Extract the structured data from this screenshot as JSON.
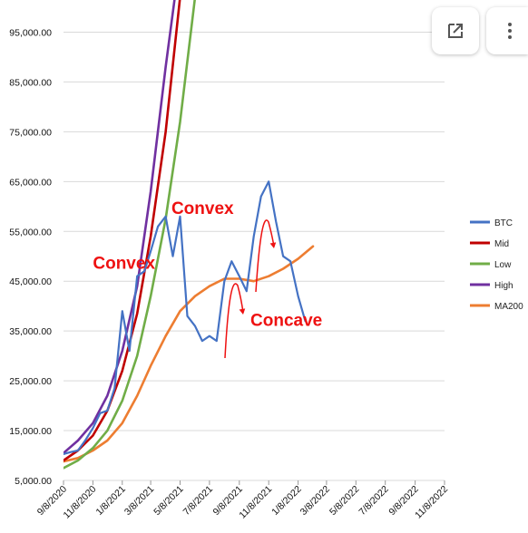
{
  "toolbar": {
    "open_icon": "open-in-new-icon",
    "more_icon": "more-vert-icon"
  },
  "chart_data": {
    "type": "line",
    "title": "",
    "xlabel": "",
    "ylabel": "",
    "ylim": [
      5000,
      100000
    ],
    "y_ticks": [
      "5,000.00",
      "15,000.00",
      "25,000.00",
      "35,000.00",
      "45,000.00",
      "55,000.00",
      "65,000.00",
      "75,000.00",
      "85,000.00",
      "95,000.00"
    ],
    "y_tick_values": [
      5000,
      15000,
      25000,
      35000,
      45000,
      55000,
      65000,
      75000,
      85000,
      95000
    ],
    "x_ticks": [
      "9/8/2020",
      "11/8/2020",
      "1/8/2021",
      "3/8/2021",
      "5/8/2021",
      "7/8/2021",
      "9/8/2021",
      "11/8/2021",
      "1/8/2022",
      "3/8/2022",
      "5/8/2022",
      "7/8/2022",
      "9/8/2022",
      "11/8/2022"
    ],
    "grid": true,
    "legend_position": "right",
    "series": [
      {
        "name": "BTC",
        "color": "#4472c4",
        "x": [
          "9/8/2020",
          "9/23/2020",
          "10/8/2020",
          "10/23/2020",
          "11/8/2020",
          "11/23/2020",
          "12/8/2020",
          "12/23/2020",
          "1/8/2021",
          "1/23/2021",
          "2/8/2021",
          "2/23/2021",
          "3/8/2021",
          "3/23/2021",
          "4/8/2021",
          "4/23/2021",
          "5/8/2021",
          "5/23/2021",
          "6/8/2021",
          "6/23/2021",
          "7/8/2021",
          "7/23/2021",
          "8/8/2021",
          "8/23/2021",
          "9/8/2021",
          "9/23/2021",
          "10/8/2021",
          "10/23/2021",
          "11/8/2021",
          "11/23/2021",
          "12/8/2021",
          "12/23/2021",
          "1/8/2022",
          "1/23/2022"
        ],
        "values": [
          10300,
          10700,
          11000,
          13000,
          15500,
          18500,
          19000,
          23500,
          39000,
          31000,
          46000,
          47000,
          51000,
          56000,
          58000,
          50000,
          58000,
          38000,
          36000,
          33000,
          34000,
          33000,
          45000,
          49000,
          46000,
          43000,
          54000,
          62000,
          65000,
          57000,
          50000,
          49000,
          42000,
          37000
        ]
      },
      {
        "name": "Mid",
        "color": "#c00000",
        "x": [
          "9/8/2020",
          "10/8/2020",
          "11/8/2020",
          "12/8/2020",
          "1/8/2021",
          "2/8/2021",
          "3/8/2021",
          "4/8/2021",
          "5/8/2021"
        ],
        "values": [
          9000,
          11000,
          14000,
          19000,
          27000,
          38500,
          54000,
          75000,
          102000
        ]
      },
      {
        "name": "Low",
        "color": "#70ad47",
        "x": [
          "9/8/2020",
          "10/8/2020",
          "11/8/2020",
          "12/8/2020",
          "1/8/2021",
          "2/8/2021",
          "3/8/2021",
          "4/8/2021",
          "5/8/2021",
          "6/8/2021"
        ],
        "values": [
          7500,
          9000,
          11500,
          15000,
          21000,
          30000,
          42000,
          57500,
          77000,
          102000
        ]
      },
      {
        "name": "High",
        "color": "#7030a0",
        "x": [
          "9/8/2020",
          "10/8/2020",
          "11/8/2020",
          "12/8/2020",
          "1/8/2021",
          "2/8/2021",
          "3/8/2021",
          "4/8/2021",
          "5/8/2021"
        ],
        "values": [
          10500,
          13000,
          16500,
          22000,
          31000,
          44000,
          63000,
          88000,
          110000
        ]
      },
      {
        "name": "MA200",
        "color": "#ed7d31",
        "x": [
          "9/8/2020",
          "10/8/2020",
          "11/8/2020",
          "12/8/2020",
          "1/8/2021",
          "2/8/2021",
          "3/8/2021",
          "4/8/2021",
          "5/8/2021",
          "6/8/2021",
          "7/8/2021",
          "8/8/2021",
          "9/8/2021",
          "10/8/2021",
          "11/8/2021",
          "12/8/2021",
          "1/8/2022",
          "2/8/2022"
        ],
        "values": [
          8800,
          9500,
          11000,
          13000,
          16500,
          22000,
          28000,
          34000,
          39000,
          42000,
          44000,
          45500,
          45500,
          45000,
          46000,
          47500,
          49500,
          52000
        ]
      }
    ],
    "annotations": [
      {
        "text": "Convex",
        "x": "11/8/2020",
        "y": 47500
      },
      {
        "text": "Convex",
        "x": "4/20/2021",
        "y": 58500
      },
      {
        "text": "Concave",
        "x": "10/1/2021",
        "y": 36000
      }
    ]
  }
}
